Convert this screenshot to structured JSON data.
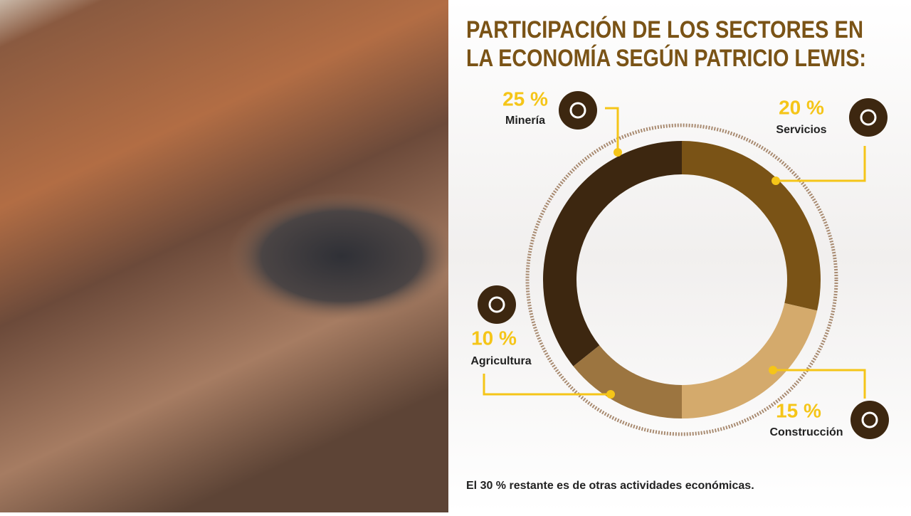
{
  "chart_data": {
    "type": "donut",
    "title": [
      "PARTICIPACIÓN DE LOS SECTORES EN",
      "LA ECONOMÍA SEGÚN PATRICIO LEWIS:"
    ],
    "categories": [
      "Minería",
      "Servicios",
      "Construcción",
      "Agricultura"
    ],
    "values": [
      25,
      20,
      15,
      10
    ],
    "value_labels": [
      "25 %",
      "20 %",
      "15 %",
      "10 %"
    ],
    "colors": [
      "#3d2710",
      "#7a5316",
      "#d4aa6c",
      "#9c7540"
    ],
    "label_color": "#f5c518",
    "annotation": "El 30 % restante es de otras actividades económicas."
  }
}
